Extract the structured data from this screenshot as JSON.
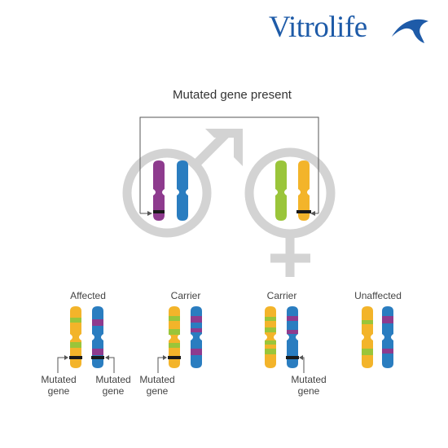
{
  "brand": {
    "name": "Vitrolife",
    "mark": "swoosh-logo-icon",
    "color": "#1e5ba8"
  },
  "heading": "Mutated gene present",
  "parents": {
    "father_symbol": "male-symbol-icon",
    "mother_symbol": "female-symbol-icon"
  },
  "offspring": [
    {
      "status": "Affected",
      "annotations": [
        "Mutated gene",
        "Mutated gene"
      ]
    },
    {
      "status": "Carrier",
      "annotations": [
        "Mutated gene"
      ]
    },
    {
      "status": "Carrier",
      "annotations": [
        "Mutated gene"
      ]
    },
    {
      "status": "Unaffected",
      "annotations": []
    }
  ],
  "colors": {
    "symbol_gray": "#d3d3d3",
    "purple": "#8e3b8e",
    "blue": "#2a7dc0",
    "green": "#9ac53a",
    "orange": "#f3b42a",
    "mutation_band": "#1a1a1a"
  }
}
